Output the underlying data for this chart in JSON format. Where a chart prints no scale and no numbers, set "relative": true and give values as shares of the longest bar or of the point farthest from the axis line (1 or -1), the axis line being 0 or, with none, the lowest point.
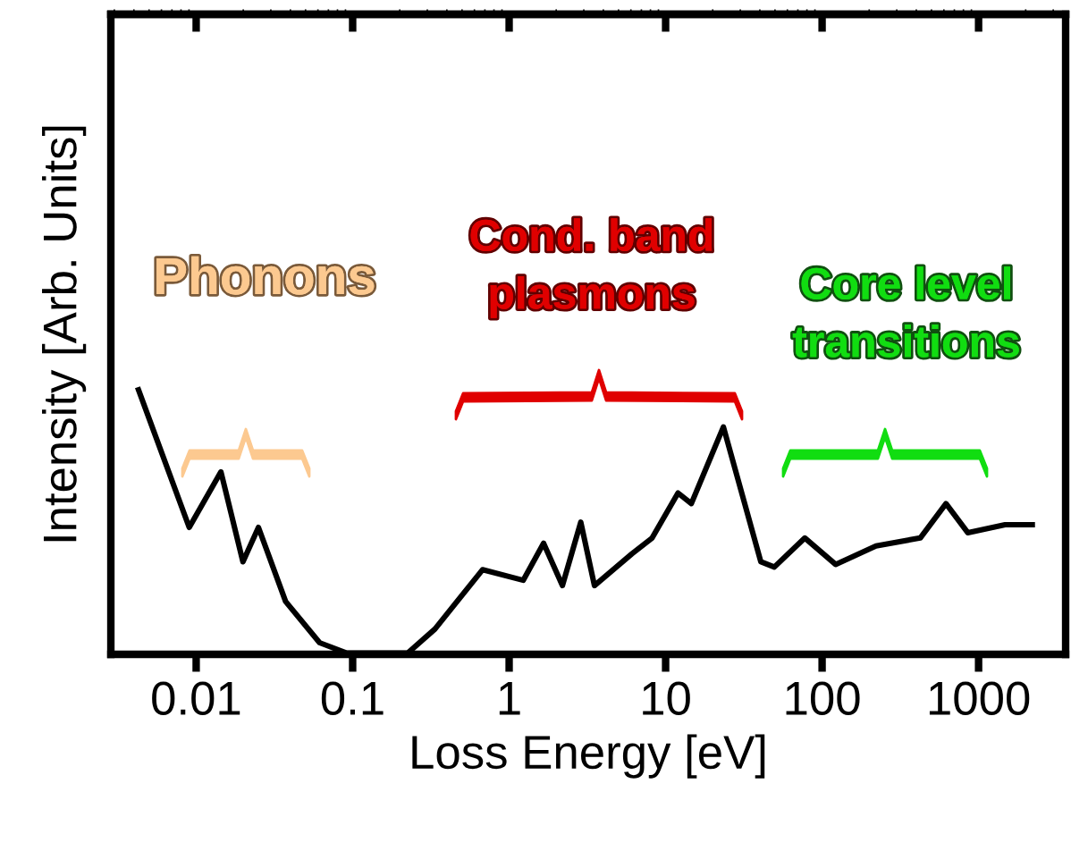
{
  "chart_data": {
    "type": "line",
    "relative": true,
    "xlabel": "Loss Energy [eV]",
    "ylabel": "Intensity [Arb. Units]",
    "log": "x",
    "xlim": [
      0.00285,
      3600
    ],
    "xticks": [
      0.01,
      0.1,
      1,
      10,
      100,
      1000
    ],
    "tick_labels": "x",
    "annotations": [
      "Phonons",
      "Cond. band\nplasmons",
      "Core level\ntransitions"
    ],
    "series": [
      {
        "color": "#000000",
        "x": [
          0.00428,
          0.00903,
          0.0144,
          0.0199,
          0.025,
          0.0373,
          0.0615,
          0.0917,
          0.225,
          0.336,
          0.676,
          1.23,
          1.66,
          2.19,
          2.87,
          3.51,
          6.08,
          8.2,
          12.0,
          14.6,
          23.4,
          40.6,
          49.5,
          77.6,
          122,
          221,
          424,
          619,
          853,
          1476,
          2203
        ],
        "values": [
          1.0,
          0.48,
          0.69,
          0.35,
          0.48,
          0.2,
          0.044,
          0.005,
          0.005,
          0.096,
          0.32,
          0.28,
          0.42,
          0.26,
          0.5,
          0.26,
          0.38,
          0.44,
          0.61,
          0.57,
          0.86,
          0.35,
          0.33,
          0.44,
          0.34,
          0.41,
          0.44,
          0.57,
          0.46,
          0.49,
          0.49
        ]
      }
    ]
  }
}
